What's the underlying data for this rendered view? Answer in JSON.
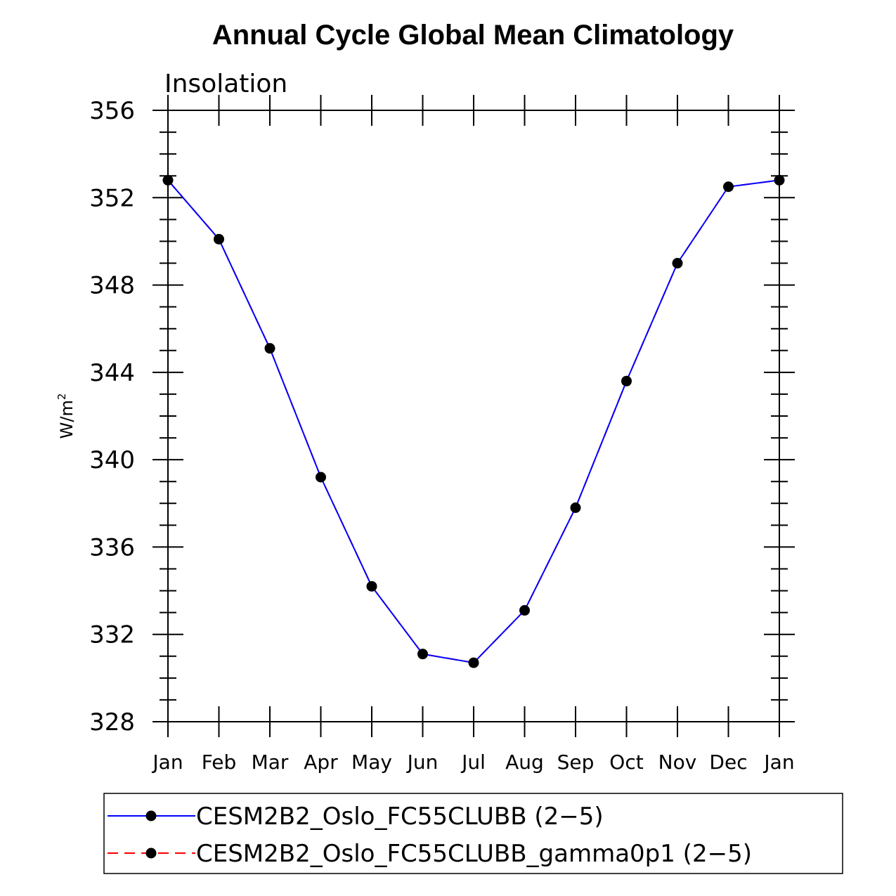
{
  "chart_data": {
    "type": "line",
    "title": "Annual Cycle Global Mean Climatology",
    "subtitle": "Insolation",
    "xlabel": "",
    "ylabel_base": "W/m",
    "ylabel_sup": "2",
    "ylim": [
      328,
      356
    ],
    "yticks": [
      328,
      332,
      336,
      340,
      344,
      348,
      352,
      356
    ],
    "categories": [
      "Jan",
      "Feb",
      "Mar",
      "Apr",
      "May",
      "Jun",
      "Jul",
      "Aug",
      "Sep",
      "Oct",
      "Nov",
      "Dec",
      "Jan"
    ],
    "series": [
      {
        "name": "CESM2B2_Oslo_FC55CLUBB (2−5)",
        "color": "#0000ff",
        "line_style": "solid",
        "values": [
          352.8,
          350.1,
          345.1,
          339.2,
          334.2,
          331.1,
          330.7,
          333.1,
          337.8,
          343.6,
          349.0,
          352.5,
          352.8
        ]
      },
      {
        "name": "CESM2B2_Oslo_FC55CLUBB_gamma0p1 (2−5)",
        "color": "#ff0000",
        "line_style": "dashed",
        "values": [
          352.8,
          350.1,
          345.1,
          339.2,
          334.2,
          331.1,
          330.7,
          333.1,
          337.8,
          343.6,
          349.0,
          352.5,
          352.8
        ]
      }
    ],
    "marker_color": "#000000",
    "legend_position": "bottom"
  }
}
